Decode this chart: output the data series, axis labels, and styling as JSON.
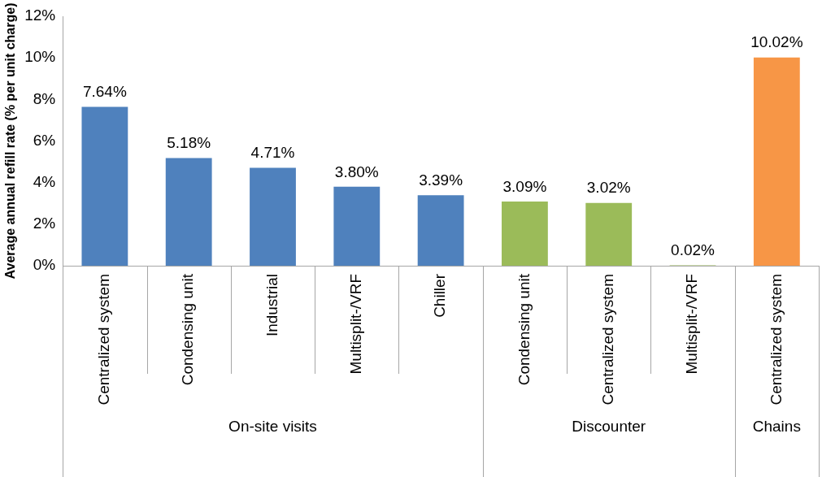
{
  "chart_data": {
    "type": "bar",
    "ylabel": "Average annual refill rate (% per unit charge)",
    "categories": [
      "Centralized system",
      "Condensing unit",
      "Industrial",
      "Multisplit-/VRF",
      "Chiller",
      "Condensing unit",
      "Centralized system",
      "Multisplit-/VRF",
      "Centralized system"
    ],
    "values": [
      7.64,
      5.18,
      4.71,
      3.8,
      3.39,
      3.09,
      3.02,
      0.02,
      10.02
    ],
    "colors": [
      "#4f81bd",
      "#4f81bd",
      "#4f81bd",
      "#4f81bd",
      "#4f81bd",
      "#9bbb59",
      "#9bbb59",
      "#9bbb59",
      "#f79646"
    ],
    "value_labels": [
      "7.64%",
      "5.18%",
      "4.71%",
      "3.80%",
      "3.39%",
      "3.09%",
      "3.02%",
      "0.02%",
      "10.02%"
    ],
    "annotations": [
      "On-site visits",
      "Discounter",
      "Chains"
    ],
    "ylim": [
      0,
      12
    ],
    "yticks": [
      {
        "value": 0,
        "label": "0%"
      },
      {
        "value": 2,
        "label": "2%"
      },
      {
        "value": 4,
        "label": "4%"
      },
      {
        "value": 6,
        "label": "6%"
      },
      {
        "value": 8,
        "label": "8%"
      },
      {
        "value": 10,
        "label": "10%"
      },
      {
        "value": 12,
        "label": "12%"
      }
    ],
    "grid": false,
    "legend": false
  }
}
